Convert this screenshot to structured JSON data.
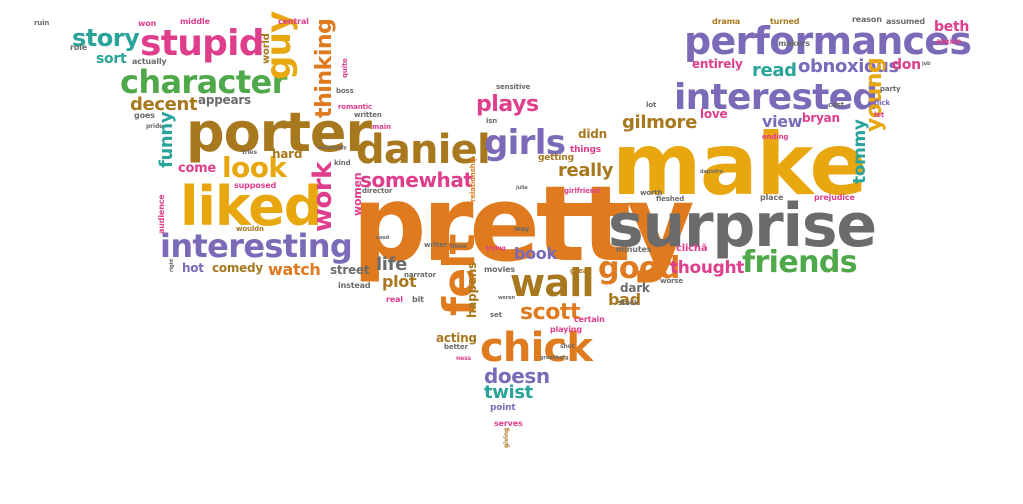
{
  "words": {
    "make": "make",
    "pretty": "pretty",
    "surprise": "surprise",
    "porter": "porter",
    "liked": "liked",
    "performances": "performances",
    "interested": "interested",
    "daniel": "daniel",
    "interesting": "interesting",
    "character": "character",
    "stupid": "stupid",
    "chick": "chick",
    "wall": "wall",
    "felt": "felt",
    "good": "good",
    "friends": "friends",
    "girls": "girls",
    "look": "look",
    "guy": "guy",
    "story": "story",
    "work": "work",
    "thinking": "thinking",
    "obnoxious": "obnoxious",
    "read": "read",
    "plays": "plays",
    "somewhat": "somewhat",
    "scott": "scott",
    "doesn": "doesn",
    "twist": "twist",
    "gilmore": "gilmore",
    "really": "really",
    "thought": "thought",
    "book": "book",
    "young": "young",
    "tommy": "tommy",
    "view": "view",
    "bryan": "bryan",
    "decent": "decent",
    "funny": "funny",
    "watch": "watch",
    "life": "life",
    "plot": "plot",
    "acting": "acting",
    "happens": "happens",
    "bad": "bad",
    "dark": "dark",
    "entirely": "entirely",
    "don": "don",
    "beth": "beth",
    "sort": "sort",
    "appears": "appears",
    "comedy": "comedy",
    "hot": "hot",
    "come": "come",
    "hard": "hard",
    "street": "street",
    "didn": "didn",
    "women": "women",
    "love": "love",
    "makers": "makers",
    "drama": "drama",
    "turned": "turned",
    "reason": "reason",
    "assumed": "assumed",
    "alexis": "alexis",
    "won": "won",
    "middle": "middle",
    "central": "central",
    "world": "world",
    "role": "role",
    "actually": "actually",
    "quite": "quite",
    "boss": "boss",
    "romantic": "romantic",
    "written": "written",
    "main": "main",
    "sensitive": "sensitive",
    "isn": "isn",
    "things": "things",
    "getting": "getting",
    "lot": "lot",
    "cast": "cast",
    "party": "party",
    "flick": "flick",
    "ending": "ending",
    "let": "let",
    "goes": "goes",
    "pride": "pride",
    "tries": "tries",
    "kind": "kind",
    "relationship": "relationship",
    "girlfriend": "girlfriend",
    "supposed": "supposed",
    "audience": "audience",
    "director": "director",
    "wouldn": "wouldn",
    "fleshed": "fleshed",
    "worth": "worth",
    "place": "place",
    "prejudice": "prejudice",
    "minutes": "minutes",
    "cliche": "clichã",
    "writer": "writer",
    "think": "think",
    "trying": "trying",
    "way": "way",
    "movies": "movies",
    "narrator": "narrator",
    "instead": "instead",
    "real": "real",
    "bit": "bit",
    "great": "great",
    "stock": "stock",
    "worse": "worse",
    "set": "set",
    "certain": "certain",
    "playing": "playing",
    "better": "better",
    "shot": "shot",
    "ness": "ness",
    "point": "point",
    "serves": "serves",
    "giving": "giving",
    "ruin": "ruin",
    "right": "right",
    "eventually": "eventually",
    "job": "job",
    "julia": "julia",
    "used": "used",
    "weren": "weren",
    "greenberg": "greenberg",
    "dapiefro": "dapiefro"
  }
}
